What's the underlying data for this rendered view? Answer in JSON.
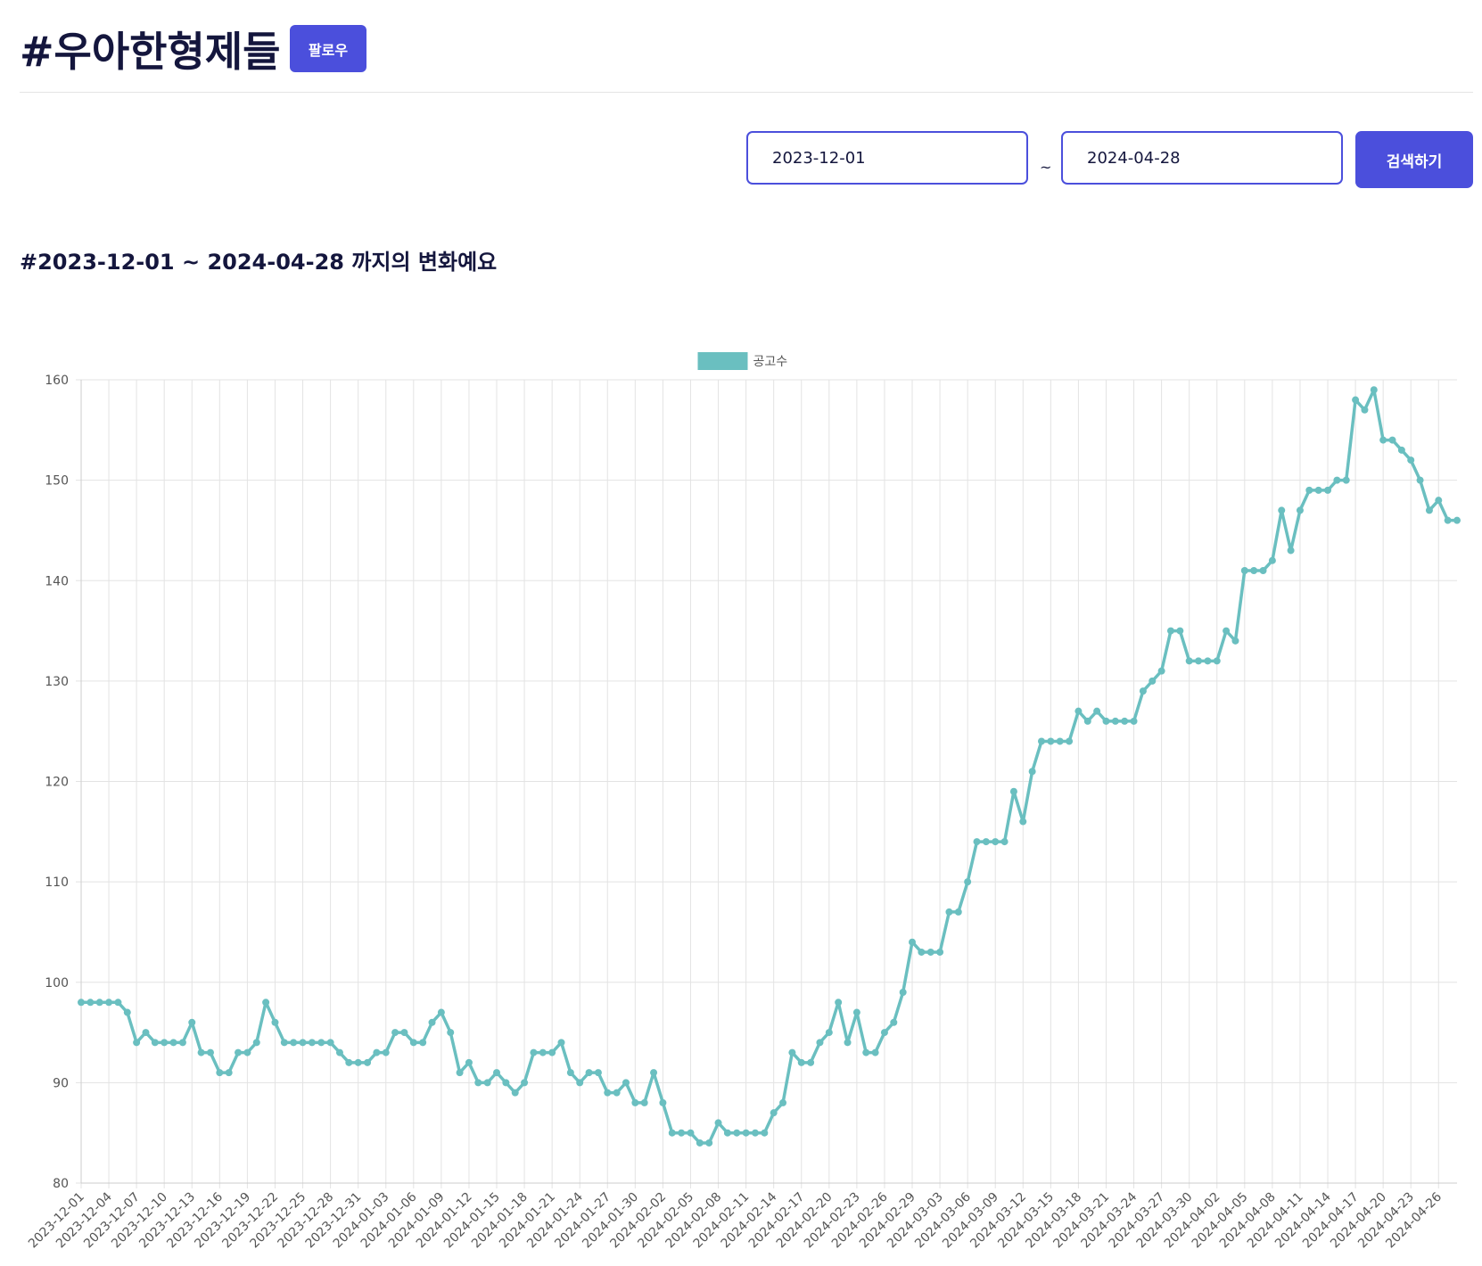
{
  "header": {
    "title": "#우아한형제들",
    "follow_button": "팔로우"
  },
  "search": {
    "start_date": "2023-12-01",
    "separator": "~",
    "end_date": "2024-04-28",
    "button": "검색하기"
  },
  "subtitle": "#2023-12-01 ~ 2024-04-28 까지의 변화예요",
  "chart_data": {
    "type": "line",
    "categories": [
      "2023-12-01",
      null,
      null,
      "2023-12-04",
      null,
      null,
      "2023-12-07",
      null,
      null,
      "2023-12-10",
      null,
      null,
      "2023-12-13",
      null,
      null,
      "2023-12-16",
      null,
      null,
      "2023-12-19",
      null,
      null,
      "2023-12-22",
      null,
      null,
      "2023-12-25",
      null,
      null,
      "2023-12-28",
      null,
      null,
      "2023-12-31",
      null,
      null,
      "2024-01-03",
      null,
      null,
      "2024-01-06",
      null,
      null,
      "2024-01-09",
      null,
      null,
      "2024-01-12",
      null,
      null,
      "2024-01-15",
      null,
      null,
      "2024-01-18",
      null,
      null,
      "2024-01-21",
      null,
      null,
      "2024-01-24",
      null,
      null,
      "2024-01-27",
      null,
      null,
      "2024-01-30",
      null,
      null,
      "2024-02-02",
      null,
      null,
      "2024-02-05",
      null,
      null,
      "2024-02-08",
      null,
      null,
      "2024-02-11",
      null,
      null,
      "2024-02-14",
      null,
      null,
      "2024-02-17",
      null,
      null,
      "2024-02-20",
      null,
      null,
      "2024-02-23",
      null,
      null,
      "2024-02-26",
      null,
      null,
      "2024-02-29",
      null,
      null,
      "2024-03-03",
      null,
      null,
      "2024-03-06",
      null,
      null,
      "2024-03-09",
      null,
      null,
      "2024-03-12",
      null,
      null,
      "2024-03-15",
      null,
      null,
      "2024-03-18",
      null,
      null,
      "2024-03-21",
      null,
      null,
      "2024-03-24",
      null,
      null,
      "2024-03-27",
      null,
      null,
      "2024-03-30",
      null,
      null,
      "2024-04-02",
      null,
      null,
      "2024-04-05",
      null,
      null,
      "2024-04-08",
      null,
      null,
      "2024-04-11",
      null,
      null,
      "2024-04-14",
      null,
      null,
      "2024-04-17",
      null,
      null,
      "2024-04-20",
      null,
      null,
      "2024-04-23",
      null,
      null,
      "2024-04-26",
      null,
      null
    ],
    "series": [
      {
        "name": "공고수",
        "color": "#6abfc0",
        "values": [
          98,
          98,
          98,
          98,
          98,
          97,
          94,
          95,
          94,
          94,
          94,
          94,
          96,
          93,
          93,
          91,
          91,
          93,
          93,
          94,
          98,
          96,
          94,
          94,
          94,
          94,
          94,
          94,
          93,
          92,
          92,
          92,
          93,
          93,
          95,
          95,
          94,
          94,
          96,
          97,
          95,
          91,
          92,
          90,
          90,
          91,
          90,
          89,
          90,
          93,
          93,
          93,
          94,
          91,
          90,
          91,
          91,
          89,
          89,
          90,
          88,
          88,
          91,
          88,
          85,
          85,
          85,
          84,
          84,
          86,
          85,
          85,
          85,
          85,
          85,
          87,
          88,
          93,
          92,
          92,
          94,
          95,
          98,
          94,
          97,
          93,
          93,
          95,
          96,
          99,
          104,
          103,
          103,
          103,
          107,
          107,
          110,
          114,
          114,
          114,
          114,
          119,
          116,
          121,
          124,
          124,
          124,
          124,
          127,
          126,
          127,
          126,
          126,
          126,
          126,
          129,
          130,
          131,
          135,
          135,
          132,
          132,
          132,
          132,
          135,
          134,
          141,
          141,
          141,
          142,
          147,
          143,
          147,
          149,
          149,
          149,
          150,
          150,
          158,
          157,
          159,
          154,
          154,
          153,
          152,
          150,
          147,
          148,
          146,
          146
        ]
      }
    ],
    "ylim": [
      80,
      160
    ],
    "yticks": [
      80,
      90,
      100,
      110,
      120,
      130,
      140,
      150,
      160
    ],
    "grid": true,
    "legend": "top"
  }
}
